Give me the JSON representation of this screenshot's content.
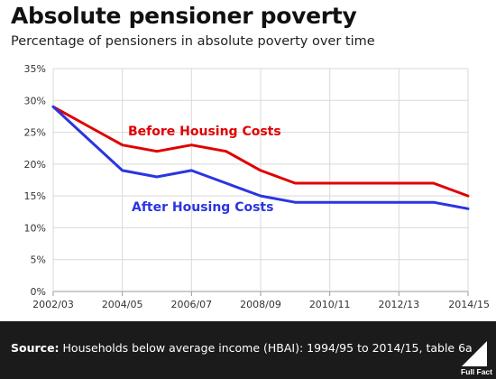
{
  "header": {
    "title": "Absolute pensioner poverty",
    "subtitle": "Percentage of pensioners in absolute poverty over time"
  },
  "footer": {
    "source_label": "Source:",
    "source_text": "Households below average income (HBAI): 1994/95 to 2014/15, table 6a",
    "logo_text": "Full Fact"
  },
  "chart_data": {
    "type": "line",
    "title": "Absolute pensioner poverty",
    "subtitle": "Percentage of pensioners in absolute poverty over time",
    "xlabel": "",
    "ylabel": "",
    "x": [
      "2002/03",
      "2003/04",
      "2004/05",
      "2005/06",
      "2006/07",
      "2007/08",
      "2008/09",
      "2009/10",
      "2010/11",
      "2011/12",
      "2012/13",
      "2013/14",
      "2014/15"
    ],
    "x_tick_labels": [
      "2002/03",
      "2004/05",
      "2006/07",
      "2008/09",
      "2010/11",
      "2012/13",
      "2014/15"
    ],
    "y_ticks": [
      0,
      5,
      10,
      15,
      20,
      25,
      30,
      35
    ],
    "ylim": [
      0,
      35
    ],
    "y_unit": "%",
    "grid": true,
    "series": [
      {
        "name": "Before Housing Costs",
        "color": "#e00000",
        "values": [
          29,
          26,
          23,
          22,
          23,
          22,
          19,
          17,
          17,
          17,
          17,
          17,
          15
        ]
      },
      {
        "name": "After Housing Costs",
        "color": "#2b35e0",
        "values": [
          29,
          24,
          19,
          18,
          19,
          17,
          15,
          14,
          14,
          14,
          14,
          14,
          13
        ]
      }
    ]
  }
}
